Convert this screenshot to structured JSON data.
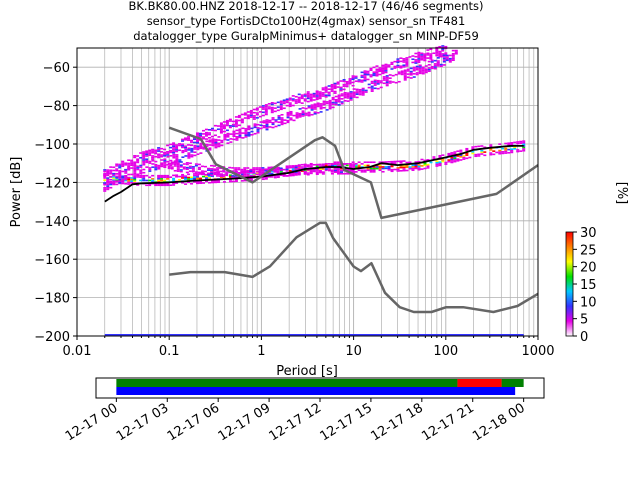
{
  "header": {
    "title_line1": "BK.BK80.00.HNZ   2018-12-17 -- 2018-12-17  (46/46 segments)",
    "title_line2": "sensor_type FortisDCto100Hz(4gmax) sensor_sn TF481",
    "title_line3": "datalogger_type GuralpMinimus+ datalogger_sn MINP-DF59"
  },
  "chart_data": [
    {
      "type": "heatmap",
      "description_kind": "probabilistic power spectral density",
      "xlabel": "Period [s]",
      "ylabel": "Power [dB]",
      "x_scale": "log",
      "xlim": [
        0.01,
        1000
      ],
      "ylim": [
        -200,
        -50
      ],
      "x_ticks": [
        0.01,
        0.1,
        1,
        10,
        100,
        1000
      ],
      "x_tick_labels": [
        "0.01",
        "0.1",
        "1",
        "10",
        "100",
        "1000"
      ],
      "y_ticks": [
        -200,
        -180,
        -160,
        -140,
        -120,
        -100,
        -80,
        -60
      ],
      "y_tick_labels": [
        "−200",
        "−180",
        "−160",
        "−140",
        "−120",
        "−100",
        "−80",
        "−60"
      ],
      "grid": true,
      "colorbar": {
        "label": "[%]",
        "range": [
          0,
          30
        ],
        "ticks": [
          0,
          5,
          10,
          15,
          20,
          25,
          30
        ],
        "tick_labels": [
          "0",
          "5",
          "10",
          "15",
          "20",
          "25",
          "30"
        ],
        "colors": [
          "#ffffff",
          "#e600e6",
          "#3333ff",
          "#00c8ff",
          "#00e000",
          "#ffff00",
          "#ff8000",
          "#ff0000"
        ]
      },
      "series": [
        {
          "role": "mode",
          "color": "#000000",
          "x": [
            0.02,
            0.025,
            0.03,
            0.04,
            0.05,
            0.1,
            0.2,
            0.5,
            1,
            2,
            3,
            4,
            5,
            7,
            10,
            15,
            20,
            30,
            50,
            100,
            150,
            200,
            300,
            500,
            700
          ],
          "y": [
            -130,
            -127,
            -125,
            -121,
            -120.5,
            -120,
            -119,
            -118,
            -117,
            -115,
            -113,
            -112.5,
            -112,
            -112,
            -113,
            -112,
            -110,
            -111,
            -110,
            -107,
            -105,
            -103,
            -102,
            -101,
            -101
          ]
        },
        {
          "role": "noise-model-high",
          "color": "#666666",
          "x": [
            0.1,
            0.22,
            0.32,
            0.8,
            3.8,
            4.6,
            6.3,
            7.9,
            15.4,
            20,
            354.8,
            1000
          ],
          "y": [
            -91.5,
            -97.4,
            -110.5,
            -120,
            -98,
            -96.5,
            -101,
            -113.5,
            -120,
            -138.5,
            -126,
            -111
          ]
        },
        {
          "role": "noise-model-low",
          "color": "#666666",
          "x": [
            0.1,
            0.17,
            0.4,
            0.8,
            1.24,
            2.4,
            4.3,
            5,
            6,
            10,
            12,
            15.6,
            21.9,
            31.6,
            45,
            70,
            101,
            154,
            328,
            600,
            1000
          ],
          "y": [
            -168,
            -166.7,
            -166.7,
            -169.2,
            -163.7,
            -148.6,
            -141.1,
            -141.1,
            -149,
            -163.8,
            -166.2,
            -162.1,
            -177.5,
            -185,
            -187.5,
            -187.5,
            -185,
            -185,
            -187.5,
            -184.4,
            -178
          ]
        }
      ],
      "density_bands": [
        {
          "x": [
            0.02,
            0.03,
            0.05,
            0.1,
            0.2,
            0.5,
            1,
            2,
            5,
            10,
            20,
            50,
            100,
            200,
            500,
            700
          ],
          "y": [
            -118,
            -118,
            -119,
            -119,
            -118,
            -117,
            -116,
            -114,
            -112,
            -112,
            -112,
            -111,
            -108,
            -104,
            -102,
            -101
          ]
        },
        {
          "x": [
            0.02,
            0.03,
            0.05,
            0.1,
            0.2,
            0.5,
            1,
            2,
            5,
            10,
            20,
            50,
            100
          ],
          "y": [
            -116,
            -112,
            -107,
            -103,
            -97,
            -89,
            -83,
            -78,
            -73,
            -67,
            -61,
            -55,
            -51
          ]
        },
        {
          "x": [
            0.02,
            0.04,
            0.1,
            0.2,
            0.5,
            1,
            2,
            5,
            10,
            20,
            50,
            100,
            130
          ],
          "y": [
            -122,
            -114,
            -109,
            -103,
            -96,
            -91,
            -86,
            -80,
            -74,
            -68,
            -62,
            -56,
            -53
          ]
        },
        {
          "x": [
            0.1,
            0.2,
            0.5,
            1,
            2,
            5,
            10
          ],
          "y": [
            -111,
            -113,
            -115,
            -115,
            -114,
            -113,
            -113
          ]
        }
      ],
      "floor_line": {
        "y": -200,
        "x_start": 0.02,
        "x_end": 700,
        "color": "#3333ff"
      }
    },
    {
      "type": "bar",
      "description_kind": "data coverage timeline",
      "x_tick_labels": [
        "12-17 00",
        "12-17 03",
        "12-17 06",
        "12-17 09",
        "12-17 12",
        "12-17 15",
        "12-17 18",
        "12-17 21",
        "12-18 00"
      ],
      "x_tick_hours": [
        0,
        3,
        6,
        9,
        12,
        15,
        18,
        21,
        24
      ],
      "xlim_hours": [
        -1.2,
        25.2
      ],
      "rows": [
        {
          "segments": [
            {
              "start": 0,
              "end": 20.1,
              "color": "#008000"
            },
            {
              "start": 20.1,
              "end": 22.7,
              "color": "#ff0000"
            },
            {
              "start": 22.7,
              "end": 24,
              "color": "#008000"
            }
          ]
        },
        {
          "segments": [
            {
              "start": 0,
              "end": 23.5,
              "color": "#0000ff"
            }
          ]
        }
      ]
    }
  ]
}
